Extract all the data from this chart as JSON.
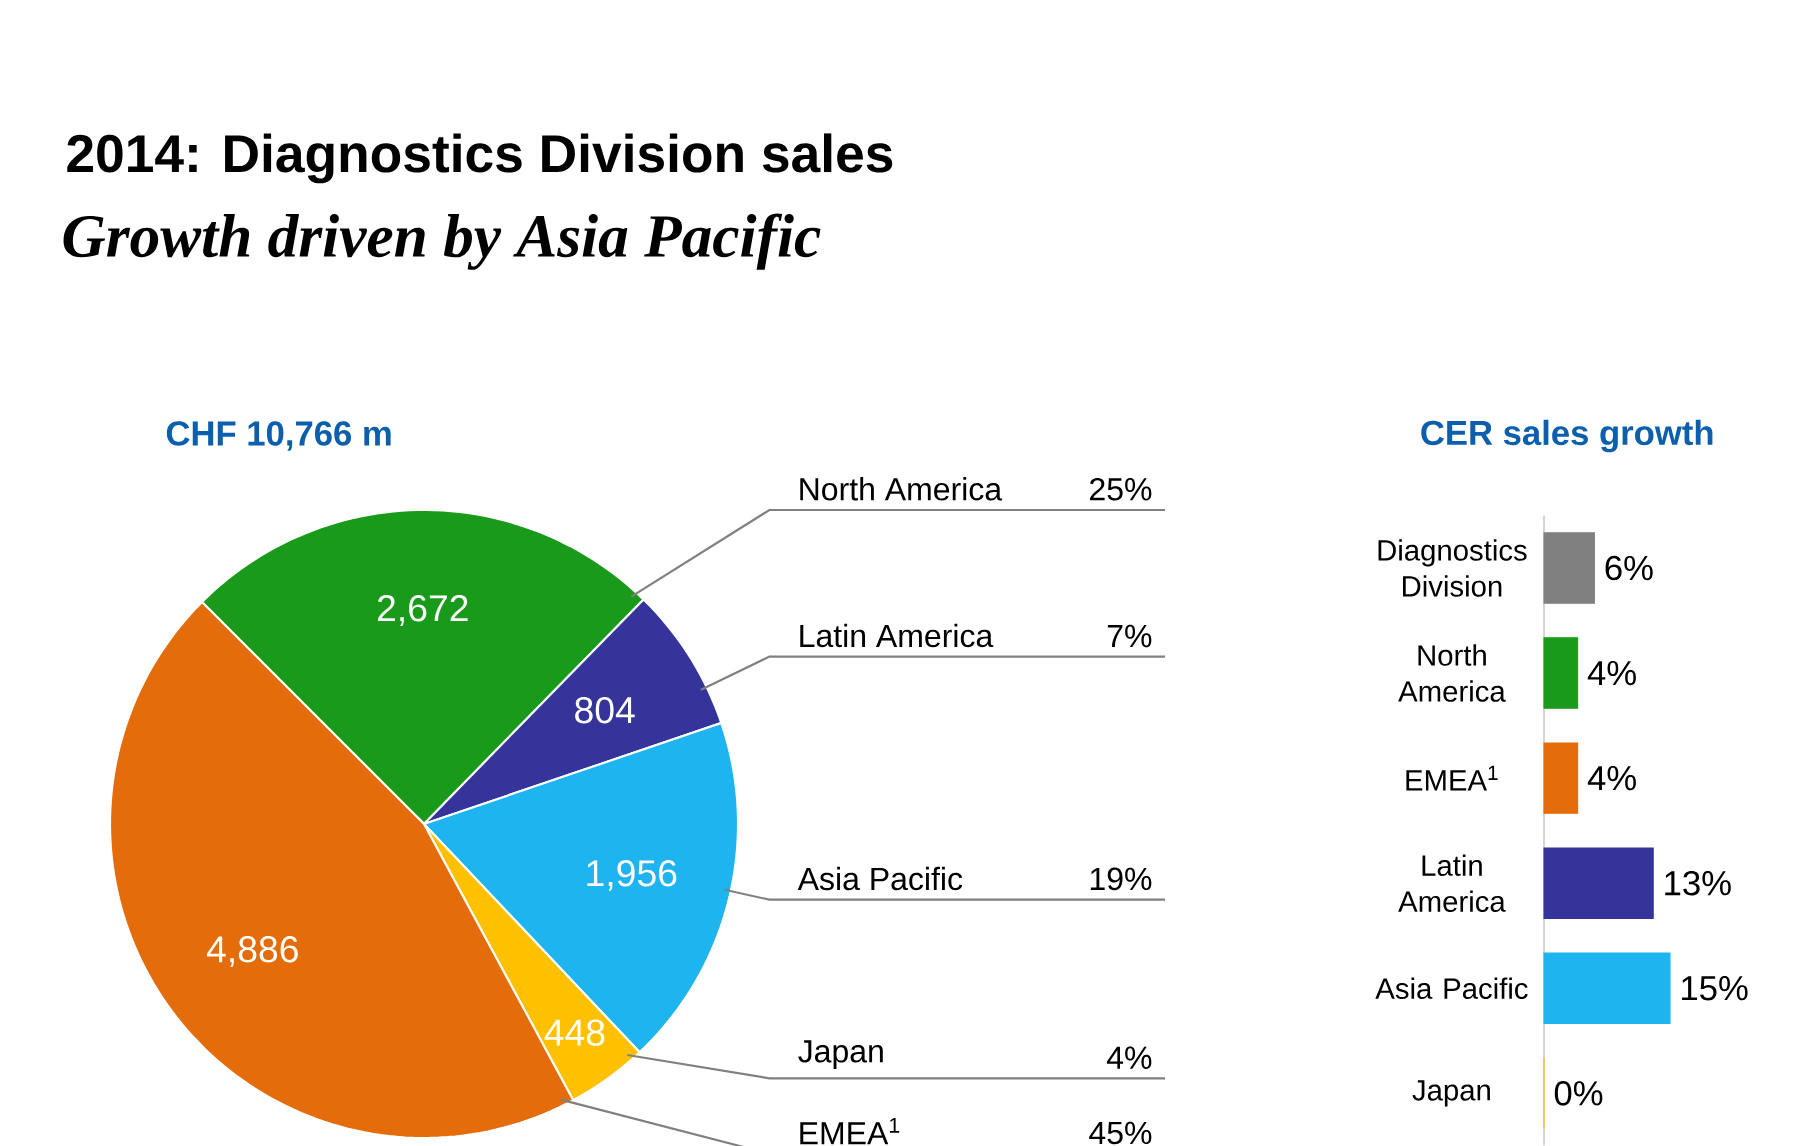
{
  "chart_data": [
    {
      "type": "pie",
      "title": "2014: Diagnostics Division sales",
      "subtitle": "Growth driven by Asia Pacific",
      "categories": [
        "North America",
        "Latin America",
        "Asia Pacific",
        "Japan",
        "EMEA$^{1}$"
      ],
      "values": [
        2672,
        804,
        1956,
        448,
        4886
      ],
      "value_labels": [
        "2,672",
        "804",
        "1,956",
        "448",
        "4,886"
      ],
      "colors": [
        "#1a9a1a",
        "#35349a",
        "#1eb4f0",
        "#ffc000",
        "#e46c0a"
      ],
      "annotations": [
        "CHF 10,766 m",
        "25%",
        "7%",
        "19%",
        "4%",
        "45%"
      ]
    },
    {
      "type": "bar",
      "orientation": "horizontal",
      "title": "CER sales growth",
      "categories": [
        "Diagnostics Division",
        "North America",
        "EMEA$^{1}$",
        "Latin America",
        "Asia Pacific",
        "Japan"
      ],
      "values": [
        6,
        4,
        4,
        13,
        15,
        0
      ],
      "value_labels": [
        "6%",
        "4%",
        "4%",
        "13%",
        "15%",
        "0%"
      ],
      "colors": [
        "#808080",
        "#1a9a1a",
        "#e46c0a",
        "#35349a",
        "#1eb4f0",
        "#ffc000"
      ]
    }
  ]
}
